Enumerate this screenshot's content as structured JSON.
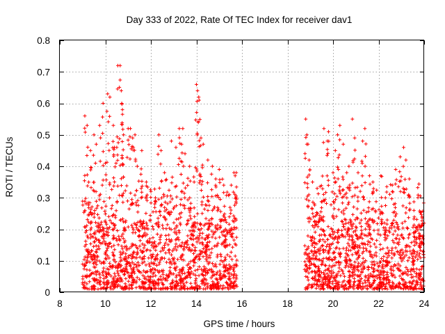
{
  "chart_data": {
    "type": "scatter",
    "title": "Day 333 of 2022, Rate Of TEC Index for receiver dav1",
    "xlabel": "GPS time / hours",
    "ylabel": "ROTI / TECUs",
    "xlim": [
      8,
      24
    ],
    "ylim": [
      0,
      0.8
    ],
    "x_ticks": [
      8,
      10,
      12,
      14,
      16,
      18,
      20,
      22,
      24
    ],
    "y_ticks": [
      0,
      0.1,
      0.2,
      0.3,
      0.4,
      0.5,
      0.6,
      0.7,
      0.8
    ],
    "x_tick_labels": [
      "8",
      "10",
      "12",
      "14",
      "16",
      "18",
      "20",
      "22",
      "24"
    ],
    "y_tick_labels": [
      "0",
      "0.1",
      "0.2",
      "0.3",
      "0.4",
      "0.5",
      "0.6",
      "0.7",
      "0.8"
    ],
    "grid": true,
    "marker": "+",
    "color": "#ff0000",
    "series": [
      {
        "name": "ROTI",
        "time_range_hours": [
          9.0,
          15.8
        ],
        "points": [
          [
            9.1,
            0.56
          ],
          [
            9.2,
            0.53
          ],
          [
            9.35,
            0.45
          ],
          [
            9.5,
            0.5
          ],
          [
            9.6,
            0.47
          ],
          [
            9.75,
            0.53
          ],
          [
            9.9,
            0.6
          ],
          [
            10.0,
            0.41
          ],
          [
            10.1,
            0.63
          ],
          [
            10.2,
            0.62
          ],
          [
            10.35,
            0.53
          ],
          [
            10.4,
            0.46
          ],
          [
            10.5,
            0.46
          ],
          [
            10.55,
            0.72
          ],
          [
            10.65,
            0.72
          ],
          [
            10.7,
            0.64
          ],
          [
            10.72,
            0.6
          ],
          [
            10.75,
            0.58
          ],
          [
            10.8,
            0.5
          ],
          [
            11.0,
            0.52
          ],
          [
            11.1,
            0.52
          ],
          [
            11.2,
            0.49
          ],
          [
            11.3,
            0.5
          ],
          [
            11.4,
            0.4
          ],
          [
            11.6,
            0.45
          ],
          [
            11.8,
            0.35
          ],
          [
            12.0,
            0.32
          ],
          [
            12.2,
            0.3
          ],
          [
            12.35,
            0.5
          ],
          [
            12.45,
            0.45
          ],
          [
            12.6,
            0.38
          ],
          [
            12.9,
            0.48
          ],
          [
            13.1,
            0.46
          ],
          [
            13.25,
            0.52
          ],
          [
            13.35,
            0.47
          ],
          [
            13.4,
            0.52
          ],
          [
            13.5,
            0.44
          ],
          [
            13.7,
            0.4
          ],
          [
            13.9,
            0.35
          ],
          [
            14.0,
            0.66
          ],
          [
            14.05,
            0.64
          ],
          [
            14.1,
            0.62
          ],
          [
            14.12,
            0.61
          ],
          [
            14.2,
            0.49
          ],
          [
            14.3,
            0.47
          ],
          [
            14.5,
            0.42
          ],
          [
            14.7,
            0.4
          ],
          [
            14.85,
            0.36
          ],
          [
            15.0,
            0.39
          ],
          [
            15.2,
            0.34
          ],
          [
            15.45,
            0.31
          ],
          [
            15.65,
            0.38
          ],
          [
            15.7,
            0.37
          ],
          [
            15.75,
            0.38
          ]
        ]
      },
      {
        "name": "ROTI",
        "time_range_hours": [
          18.75,
          24.0
        ],
        "points": [
          [
            18.8,
            0.55
          ],
          [
            18.85,
            0.5
          ],
          [
            18.9,
            0.47
          ],
          [
            18.95,
            0.42
          ],
          [
            19.1,
            0.35
          ],
          [
            19.3,
            0.33
          ],
          [
            19.6,
            0.52
          ],
          [
            19.75,
            0.48
          ],
          [
            19.8,
            0.51
          ],
          [
            20.0,
            0.38
          ],
          [
            20.1,
            0.45
          ],
          [
            20.2,
            0.5
          ],
          [
            20.3,
            0.53
          ],
          [
            20.45,
            0.47
          ],
          [
            20.6,
            0.38
          ],
          [
            20.7,
            0.4
          ],
          [
            20.85,
            0.55
          ],
          [
            20.95,
            0.49
          ],
          [
            21.1,
            0.38
          ],
          [
            21.3,
            0.48
          ],
          [
            21.4,
            0.52
          ],
          [
            21.6,
            0.37
          ],
          [
            21.75,
            0.35
          ],
          [
            22.1,
            0.37
          ],
          [
            22.3,
            0.3
          ],
          [
            22.6,
            0.34
          ],
          [
            22.75,
            0.39
          ],
          [
            22.95,
            0.43
          ],
          [
            23.1,
            0.46
          ],
          [
            23.2,
            0.42
          ],
          [
            23.35,
            0.36
          ],
          [
            23.55,
            0.26
          ],
          [
            23.8,
            0.21
          ],
          [
            23.95,
            0.17
          ]
        ]
      }
    ]
  }
}
